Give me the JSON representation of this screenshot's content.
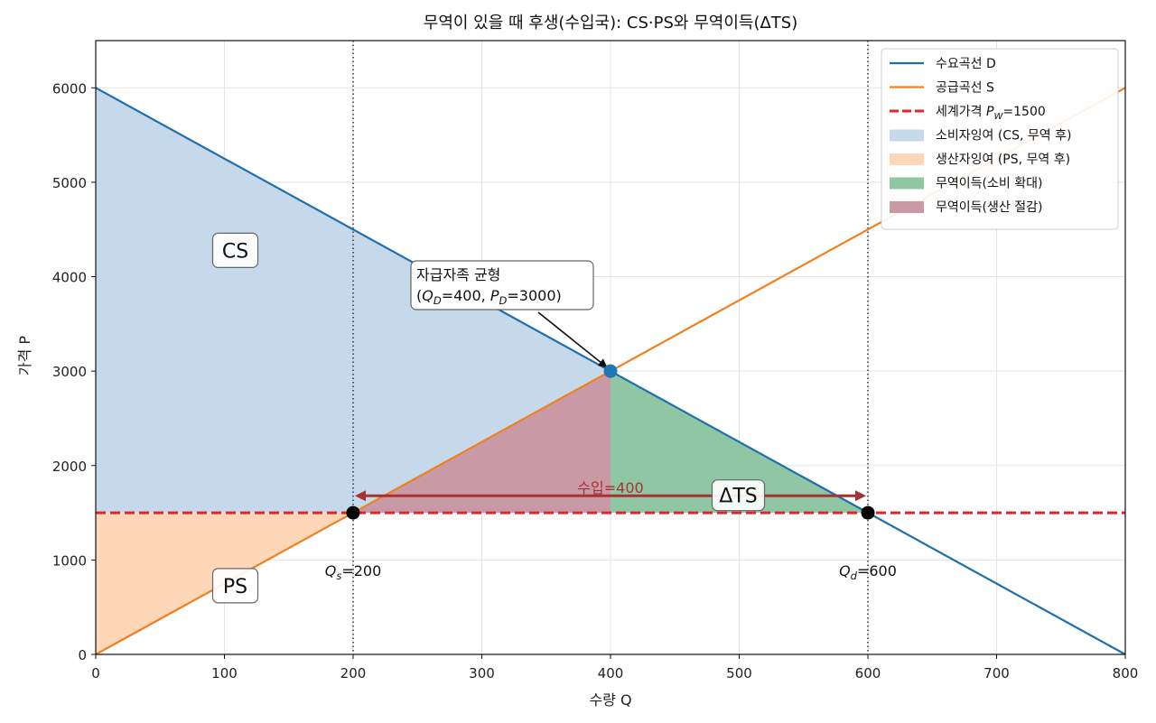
{
  "chart_data": {
    "type": "line",
    "title": "무역이 있을 때 후생(수입국): CS·PS와 무역이득(ΔTS)",
    "xlabel": "수량 Q",
    "ylabel": "가격 P",
    "xlim": [
      0,
      800
    ],
    "ylim": [
      0,
      6500
    ],
    "xticks": [
      0,
      100,
      200,
      300,
      400,
      500,
      600,
      700,
      800
    ],
    "yticks": [
      0,
      1000,
      2000,
      3000,
      4000,
      5000,
      6000
    ],
    "grid": true,
    "legend_position": "top-right",
    "series": [
      {
        "name": "수요곡선 D",
        "kind": "line",
        "color": "#1f6fae",
        "x": [
          0,
          800
        ],
        "y": [
          6000,
          0
        ]
      },
      {
        "name": "공급곡선 S",
        "kind": "line",
        "color": "#f08020",
        "x": [
          0,
          800
        ],
        "y": [
          0,
          6000
        ]
      },
      {
        "name": "세계가격 Pw=1500",
        "name_parts": [
          "세계가격 ",
          "P",
          "W",
          "=1500"
        ],
        "kind": "dashed",
        "color": "#e0262b",
        "x": [
          0,
          800
        ],
        "y": [
          1500,
          1500
        ]
      }
    ],
    "areas": [
      {
        "name": "소비자잉여 (CS, 무역 후)",
        "color": "#c5d9ea",
        "points": [
          [
            0,
            6000
          ],
          [
            0,
            1500
          ],
          [
            600,
            1500
          ]
        ]
      },
      {
        "name": "생산자잉여 (PS, 무역 후)",
        "color": "#fdd7b7",
        "points": [
          [
            0,
            0
          ],
          [
            0,
            1500
          ],
          [
            200,
            1500
          ]
        ]
      },
      {
        "name": "무역이득(소비 확대)",
        "color": "#8fc7a4",
        "points": [
          [
            400,
            3000
          ],
          [
            400,
            1500
          ],
          [
            600,
            1500
          ]
        ]
      },
      {
        "name": "무역이득(생산 절감)",
        "color": "#c99aa5",
        "points": [
          [
            200,
            1500
          ],
          [
            400,
            3000
          ],
          [
            400,
            1500
          ]
        ]
      }
    ],
    "points": [
      {
        "x": 400,
        "y": 3000,
        "color": "#1f77b4"
      },
      {
        "x": 200,
        "y": 1500,
        "color": "#000000"
      },
      {
        "x": 600,
        "y": 1500,
        "color": "#000000"
      }
    ],
    "vlines": [
      200,
      400,
      600
    ],
    "annotations": {
      "cs_label": {
        "text": "CS",
        "x": 100,
        "y": 4250
      },
      "ps_label": {
        "text": "PS",
        "x": 100,
        "y": 900
      },
      "dts_label": {
        "text": "ΔTS",
        "x": 500,
        "y": 1800
      },
      "equilibrium": {
        "line1": "자급자족 균형",
        "line2_parts": [
          "(",
          "Q",
          "D",
          "=400, ",
          "P",
          "D",
          "=3000)"
        ],
        "x": 400,
        "y": 3000
      },
      "import_label": {
        "text": "수입=400",
        "color": "#a83232",
        "x": 400,
        "y": 1700,
        "from_x": 200,
        "to_x": 600
      },
      "qs_label": {
        "parts": [
          "Q",
          "s",
          "=200"
        ],
        "x": 200,
        "y": 450
      },
      "qd_label": {
        "parts": [
          "Q",
          "d",
          "=600"
        ],
        "x": 600,
        "y": 450
      }
    }
  }
}
